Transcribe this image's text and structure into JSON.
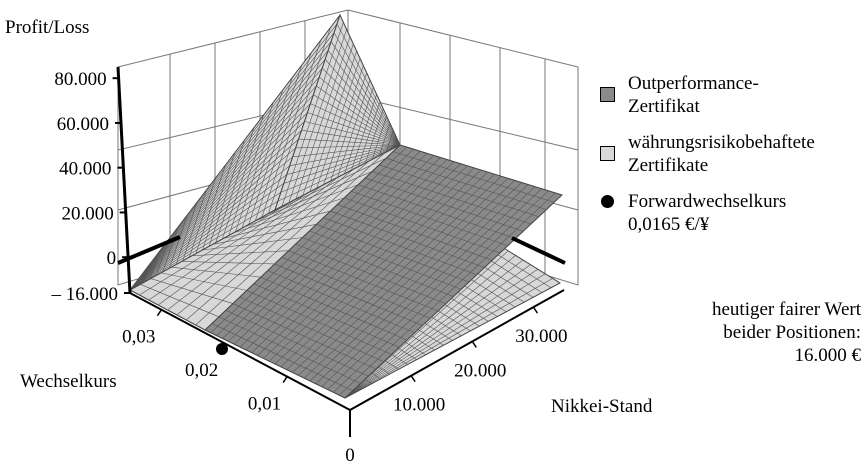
{
  "chart_data": {
    "type": "surface",
    "ylabel": "Profit/Loss",
    "x_axis_label": "Wechselkurs",
    "z_axis_label": "Nikkei-Stand",
    "profit_ticks": [
      "80.000",
      "60.000",
      "40.000",
      "20.000",
      "0",
      "– 16.000"
    ],
    "profit_values": [
      80000,
      60000,
      40000,
      20000,
      0,
      -16000
    ],
    "wechselkurs_ticks": [
      "0,03",
      "0,02",
      "0,01",
      "0"
    ],
    "wechselkurs_values": [
      0.03,
      0.02,
      0.01,
      0
    ],
    "nikkei_ticks": [
      "30.000",
      "20.000",
      "10.000"
    ],
    "nikkei_values": [
      30000,
      20000,
      10000
    ],
    "nikkei_range": [
      0,
      35000
    ],
    "wechselkurs_range": [
      0,
      0.035
    ],
    "profit_range": [
      -16000,
      85000
    ],
    "legend": [
      {
        "label_line1": "Outperformance-",
        "label_line2": "Zertifikat",
        "marker": "dark-square",
        "color": "#8a8a8a"
      },
      {
        "label_line1": "währungsrisikobehaftete",
        "label_line2": "Zertifikate",
        "marker": "light-square",
        "color": "#d8d8d8"
      },
      {
        "label_line1": "Forwardwechselkurs",
        "label_line2": "0,0165  €/¥",
        "marker": "dot",
        "color": "#000000"
      }
    ],
    "forward_rate": 0.0165,
    "fair_value": {
      "line1": "heutiger fairer Wert",
      "line2": "beider Positionen:",
      "line3": "16.000 €"
    },
    "series": [
      {
        "name": "Outperformance-Zertifikat",
        "shape": "plane rising with Nikkei-Stand",
        "profit_at_corners": {
          "nikkei_0": -16000,
          "nikkei_max": 40000
        }
      },
      {
        "name": "währungsrisikobehaftete Zertifikate",
        "shape": "surface rising with Nikkei-Stand and Wechselkurs",
        "profit_at_corners": {
          "max_both": 85000,
          "nikkei_0": -16000
        }
      }
    ]
  }
}
